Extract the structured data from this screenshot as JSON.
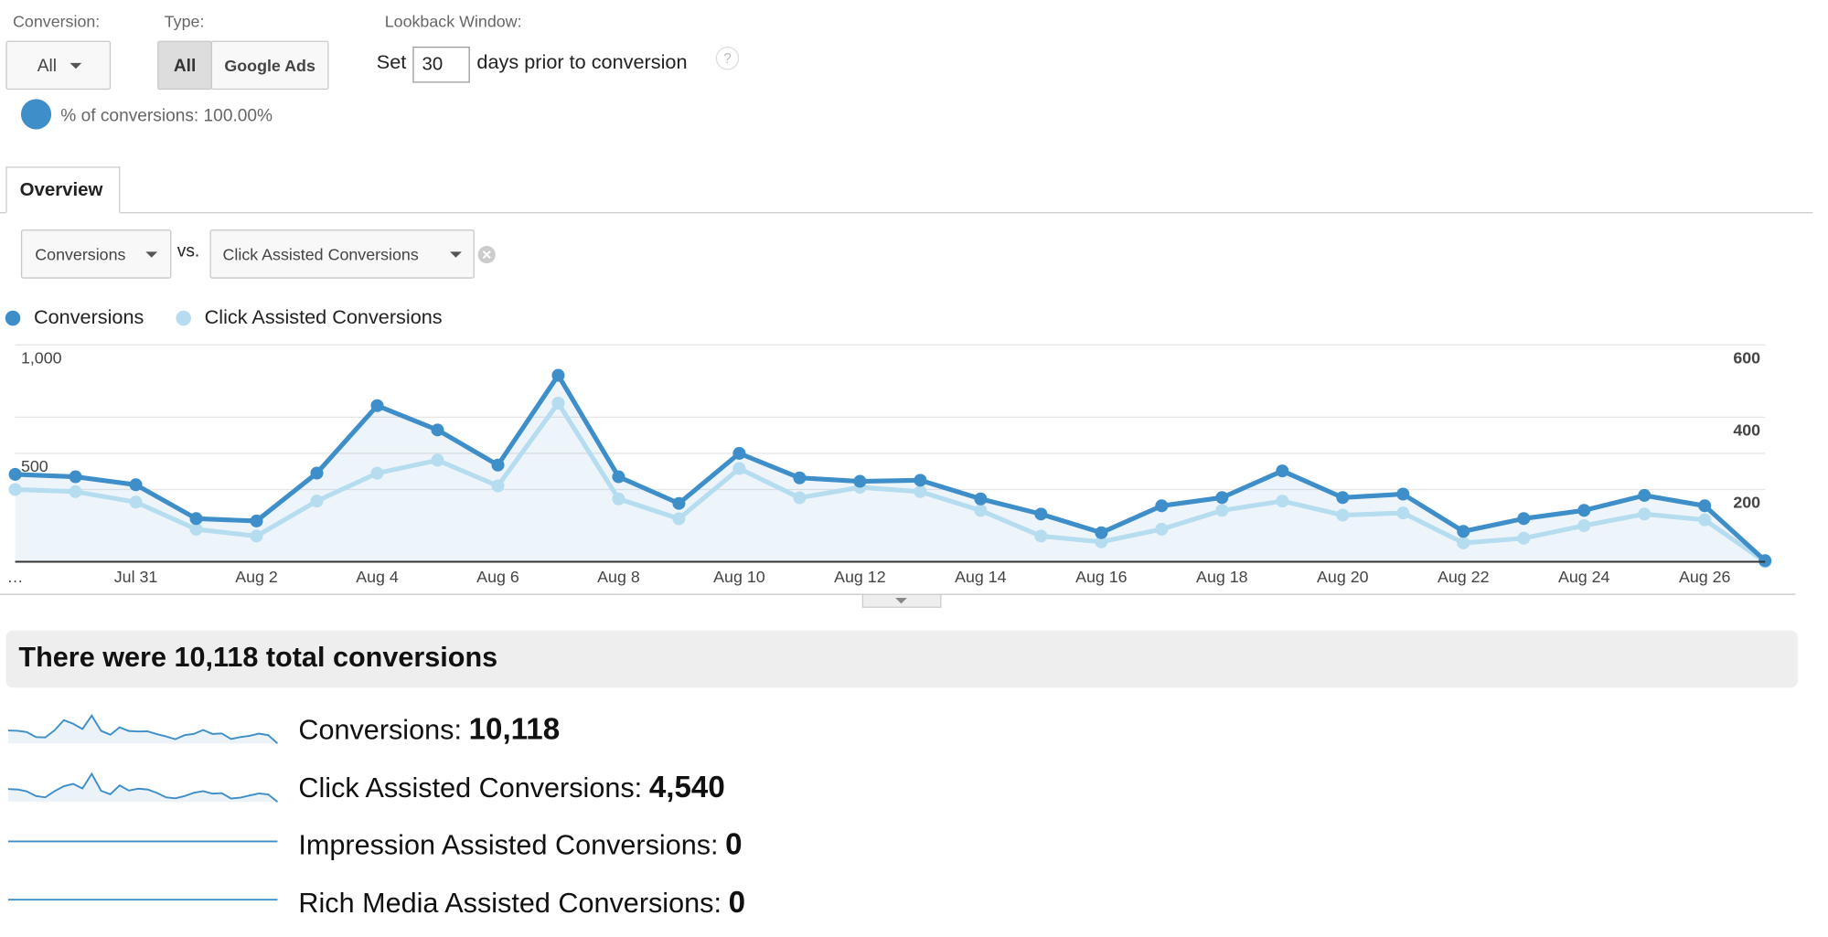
{
  "filters": {
    "conversion_label": "Conversion:",
    "conversion_value": "All",
    "type_label": "Type:",
    "type_options": [
      "All",
      "Google Ads"
    ],
    "lookback_label": "Lookback Window:",
    "set_label": "Set",
    "days_value": "30",
    "days_suffix": "days prior to conversion",
    "help_icon": "?",
    "percent_text": "% of conversions: 100.00%"
  },
  "tabs": [
    "Overview"
  ],
  "metric_selector": {
    "primary": "Conversions",
    "vs": "vs.",
    "secondary": "Click Assisted Conversions"
  },
  "chart_data": {
    "type": "line",
    "categories": [
      "…",
      null,
      "Jul 31",
      null,
      "Aug 2",
      null,
      "Aug 4",
      null,
      "Aug 6",
      null,
      "Aug 8",
      null,
      "Aug 10",
      null,
      "Aug 12",
      null,
      "Aug 14",
      null,
      "Aug 16",
      null,
      "Aug 18",
      null,
      "Aug 20",
      null,
      "Aug 22",
      null,
      "Aug 24",
      null,
      "Aug 26",
      null
    ],
    "series": [
      {
        "name": "Conversions",
        "color": "#3d8ec9",
        "values": [
          403,
          392,
          355,
          199,
          188,
          409,
          720,
          608,
          446,
          860,
          392,
          269,
          500,
          387,
          371,
          376,
          290,
          220,
          134,
          258,
          296,
          419,
          296,
          312,
          140,
          199,
          237,
          306,
          258,
          5
        ]
      },
      {
        "name": "Click Assisted Conversions",
        "color": "#b6dcf0",
        "axis": "y2",
        "values": [
          200,
          194,
          165,
          90,
          71,
          168,
          245,
          281,
          210,
          439,
          174,
          119,
          258,
          177,
          206,
          194,
          142,
          71,
          55,
          90,
          142,
          168,
          129,
          135,
          52,
          65,
          100,
          132,
          116,
          0
        ]
      }
    ],
    "ylim": [
      0,
      1000
    ],
    "yticks": [
      500,
      {
        "value": 1000,
        "label": "1,000"
      }
    ],
    "y2lim": [
      0,
      600
    ],
    "y2ticks": [
      200,
      400,
      600
    ],
    "grid": true,
    "legend": "top-left"
  },
  "summary": {
    "headline": "There were 10,118 total conversions",
    "metrics": [
      {
        "label": "Conversions:",
        "value": "10,118"
      },
      {
        "label": "Click Assisted Conversions:",
        "value": "4,540"
      },
      {
        "label": "Impression Assisted Conversions:",
        "value": 0
      },
      {
        "label": "Rich Media Assisted Conversions:",
        "value": 0
      }
    ]
  }
}
